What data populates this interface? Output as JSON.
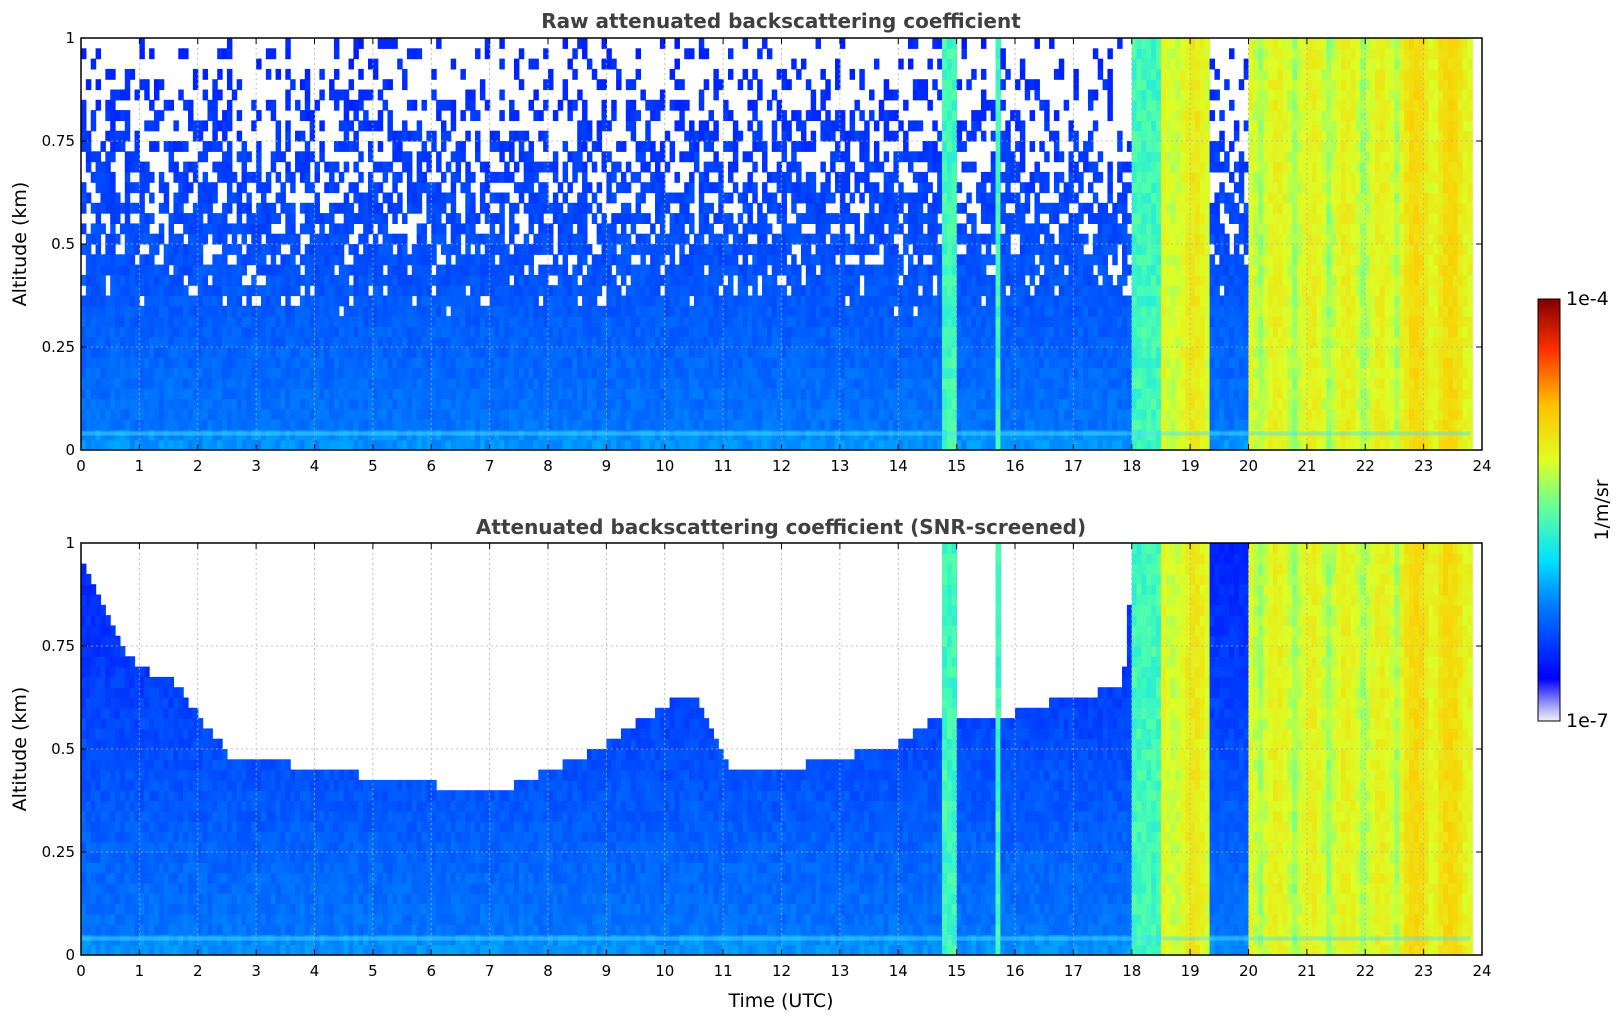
{
  "chart_data": [
    {
      "type": "heatmap",
      "title": "Raw attenuated backscattering coefficient",
      "xlabel": "",
      "ylabel": "Altitude (km)",
      "xlim": [
        0,
        24
      ],
      "ylim": [
        0,
        1
      ],
      "x_ticks": [
        "0",
        "1",
        "2",
        "3",
        "4",
        "5",
        "6",
        "7",
        "8",
        "9",
        "10",
        "11",
        "12",
        "13",
        "14",
        "15",
        "16",
        "17",
        "18",
        "19",
        "20",
        "21",
        "22",
        "23",
        "24"
      ],
      "y_ticks": [
        "0",
        "0.25",
        "0.5",
        "0.75",
        "1"
      ],
      "grid": true,
      "screened": false
    },
    {
      "type": "heatmap",
      "title": "Attenuated backscattering coefficient (SNR-screened)",
      "xlabel": "Time (UTC)",
      "ylabel": "Altitude (km)",
      "xlim": [
        0,
        24
      ],
      "ylim": [
        0,
        1
      ],
      "x_ticks": [
        "0",
        "1",
        "2",
        "3",
        "4",
        "5",
        "6",
        "7",
        "8",
        "9",
        "10",
        "11",
        "12",
        "13",
        "14",
        "15",
        "16",
        "17",
        "18",
        "19",
        "20",
        "21",
        "22",
        "23",
        "24"
      ],
      "y_ticks": [
        "0",
        "0.25",
        "0.5",
        "0.75",
        "1"
      ],
      "grid": true,
      "screened": true,
      "signal_top_km": [
        [
          0,
          0.95
        ],
        [
          0.3,
          0.85
        ],
        [
          0.6,
          0.75
        ],
        [
          1.0,
          0.68
        ],
        [
          1.5,
          0.66
        ],
        [
          2.0,
          0.56
        ],
        [
          2.5,
          0.47
        ],
        [
          3.0,
          0.46
        ],
        [
          4.0,
          0.44
        ],
        [
          5.0,
          0.42
        ],
        [
          6.0,
          0.4
        ],
        [
          6.8,
          0.38
        ],
        [
          7.2,
          0.39
        ],
        [
          8.0,
          0.44
        ],
        [
          9.0,
          0.5
        ],
        [
          10.0,
          0.6
        ],
        [
          10.5,
          0.62
        ],
        [
          11.0,
          0.45
        ],
        [
          12.0,
          0.44
        ],
        [
          13.0,
          0.47
        ],
        [
          14.0,
          0.5
        ],
        [
          14.5,
          0.55
        ],
        [
          15.0,
          0.55
        ],
        [
          15.5,
          0.55
        ],
        [
          16.0,
          0.58
        ],
        [
          17.0,
          0.62
        ],
        [
          17.8,
          0.63
        ],
        [
          18.0,
          1.0
        ],
        [
          24,
          1.0
        ]
      ],
      "colorbar": {
        "label": "1/m/sr",
        "max_label": "1e-4",
        "min_label": "1e-7",
        "scale": "log"
      }
    }
  ],
  "colors": {
    "title": "#404040",
    "grid": "#b0b0b0",
    "frame": "#000000"
  }
}
